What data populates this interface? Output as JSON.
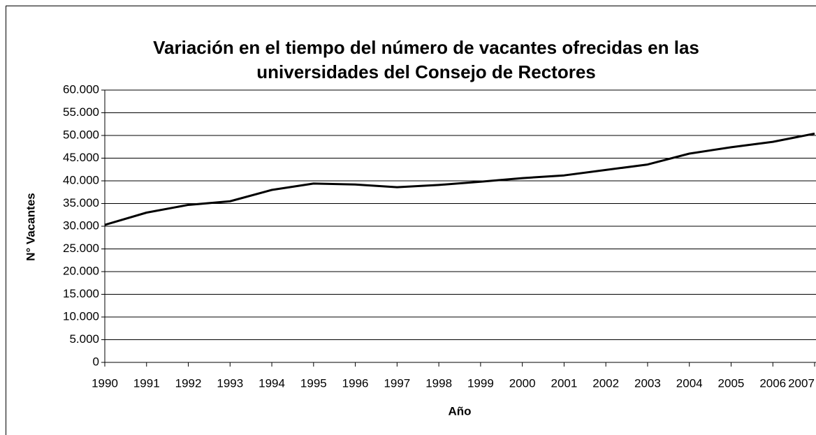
{
  "chart_data": {
    "type": "line",
    "title": [
      "Variación en el tiempo del número de vacantes ofrecidas en las",
      "universidades del Consejo de Rectores"
    ],
    "x_label": "Año",
    "y_label": "N° Vacantes",
    "categories": [
      "1990",
      "1991",
      "1992",
      "1993",
      "1994",
      "1995",
      "1996",
      "1997",
      "1998",
      "1999",
      "2000",
      "2001",
      "2002",
      "2003",
      "2004",
      "2005",
      "2006",
      "2007"
    ],
    "series": [
      {
        "name": "Vacantes",
        "color": "#000000",
        "values": [
          30300,
          33000,
          34700,
          35500,
          38000,
          39400,
          39200,
          38600,
          39100,
          39800,
          40600,
          41200,
          42400,
          43600,
          46000,
          47400,
          48600,
          50400
        ]
      }
    ],
    "ylim": [
      0,
      60000
    ],
    "yticks": [
      0,
      {
        "value": 5000,
        "label": "5.000"
      },
      {
        "value": 10000,
        "label": "10.000"
      },
      {
        "value": 15000,
        "label": "15.000"
      },
      {
        "value": 20000,
        "label": "20.000"
      },
      {
        "value": 25000,
        "label": "25.000"
      },
      {
        "value": 30000,
        "label": "30.000"
      },
      {
        "value": 35000,
        "label": "35.000"
      },
      {
        "value": 40000,
        "label": "40.000"
      },
      {
        "value": 45000,
        "label": "45.000"
      },
      {
        "value": 50000,
        "label": "50.000"
      },
      {
        "value": 55000,
        "label": "55.000"
      },
      {
        "value": 60000,
        "label": "60.000"
      }
    ],
    "grid": true
  }
}
